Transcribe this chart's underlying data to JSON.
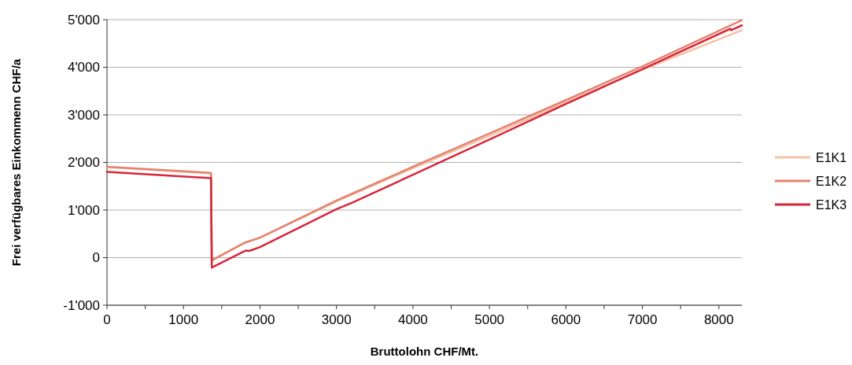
{
  "chart_data": {
    "type": "line",
    "xlabel": "Bruttolohn CHF/Mt.",
    "ylabel": "Frei verfügbares Einkommenn CHF/a",
    "xlim": [
      0,
      8300
    ],
    "ylim": [
      -1000,
      5000
    ],
    "xticks": [
      0,
      {
        "value": 500,
        "label": null
      },
      1000,
      {
        "value": 1500,
        "label": null
      },
      2000,
      {
        "value": 2500,
        "label": null
      },
      3000,
      {
        "value": 3500,
        "label": null
      },
      4000,
      {
        "value": 4500,
        "label": null
      },
      5000,
      {
        "value": 5500,
        "label": null
      },
      6000,
      {
        "value": 6500,
        "label": null
      },
      7000,
      {
        "value": 7500,
        "label": null
      },
      8000
    ],
    "yticks": [
      {
        "value": -1000,
        "label": "-1'000"
      },
      0,
      {
        "value": 1000,
        "label": "1'000"
      },
      {
        "value": 2000,
        "label": "2'000"
      },
      {
        "value": 3000,
        "label": "3'000"
      },
      {
        "value": 4000,
        "label": "4'000"
      },
      {
        "value": 5000,
        "label": "5'000"
      }
    ],
    "grid": "y",
    "legend": "right",
    "line_style": "solid",
    "series": [
      {
        "name": "E1K1",
        "color": "#f5c0a5",
        "x": [
          0,
          1360,
          1370,
          1800,
          2000,
          3000,
          4000,
          5000,
          6000,
          7000,
          8300
        ],
        "values": [
          1900,
          1770,
          -50,
          320,
          420,
          1180,
          1880,
          2560,
          3260,
          3950,
          4780
        ]
      },
      {
        "name": "E1K2",
        "color": "#e4826f",
        "x": [
          0,
          1360,
          1370,
          1800,
          2000,
          3000,
          4000,
          5000,
          6000,
          7000,
          8300
        ],
        "values": [
          1910,
          1780,
          -60,
          310,
          420,
          1200,
          1910,
          2610,
          3310,
          4020,
          4990
        ]
      },
      {
        "name": "E1K3",
        "color": "#d7263a",
        "x": [
          0,
          1360,
          1370,
          1780,
          1820,
          1860,
          2000,
          3000,
          3200,
          4000,
          5000,
          6000,
          7000,
          8150,
          8160,
          8300
        ],
        "values": [
          1800,
          1670,
          -210,
          120,
          150,
          140,
          220,
          1020,
          1150,
          1740,
          2480,
          3230,
          3960,
          4810,
          4780,
          4880
        ]
      }
    ]
  }
}
